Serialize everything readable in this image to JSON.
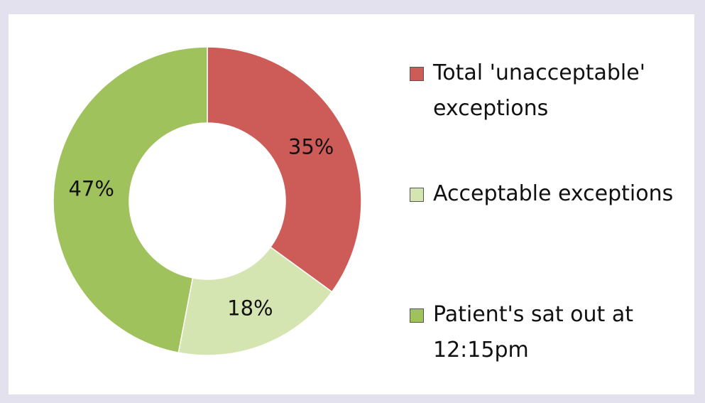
{
  "chart_data": {
    "type": "donut",
    "categories": [
      "Total 'unacceptable' exceptions",
      "Acceptable exceptions",
      "Patient's sat out at 12:15pm"
    ],
    "values": [
      35,
      18,
      47
    ],
    "value_labels": [
      "35%",
      "18%",
      "47%"
    ],
    "colors": [
      "#cd5b58",
      "#d5e5b1",
      "#9fc25c"
    ],
    "legend": "right"
  }
}
